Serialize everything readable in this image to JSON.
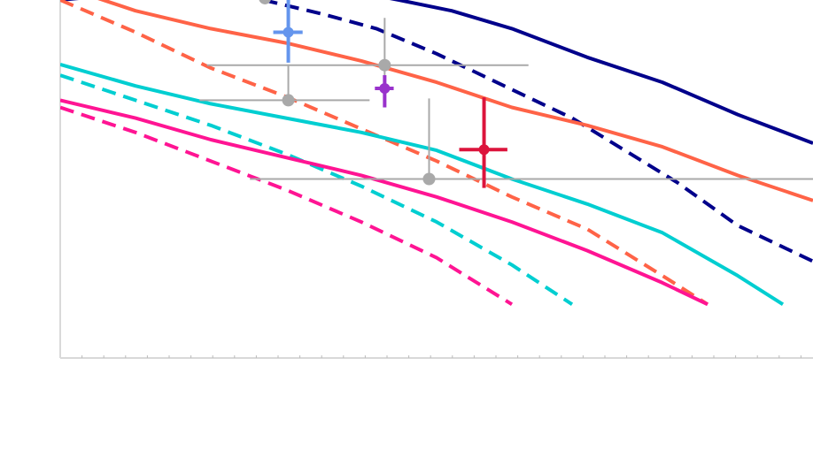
{
  "chart_data": {
    "type": "line",
    "title": "",
    "xlabel": "",
    "ylabel": "",
    "xlim": [
      0,
      100
    ],
    "ylim": [
      0,
      100
    ],
    "grid": false,
    "legend": "none",
    "series": [
      {
        "color": "#00008b",
        "dash": "solid",
        "x": [
          0,
          30,
          45,
          52,
          60,
          70,
          80,
          90,
          100
        ],
        "y": [
          100,
          106,
          100,
          97,
          92,
          84,
          77,
          68,
          60
        ]
      },
      {
        "color": "#00008b",
        "dash": "dash",
        "x": [
          27,
          35,
          42,
          50,
          55,
          60,
          68,
          75,
          82,
          90,
          100
        ],
        "y": [
          100,
          96,
          92,
          85,
          80,
          75,
          67,
          58,
          49,
          37,
          27
        ]
      },
      {
        "color": "#ff6347",
        "dash": "solid",
        "x": [
          0,
          10,
          20,
          30,
          40,
          50,
          60,
          70,
          80,
          90,
          100
        ],
        "y": [
          104,
          97,
          92,
          88,
          83,
          77,
          70,
          65,
          59,
          51,
          44
        ]
      },
      {
        "color": "#ff6347",
        "dash": "dash",
        "x": [
          0,
          10,
          20,
          30,
          40,
          50,
          60,
          70,
          80,
          86
        ],
        "y": [
          100,
          91,
          81,
          73,
          64,
          55,
          45,
          36,
          23,
          15
        ]
      },
      {
        "color": "#00ced1",
        "dash": "solid",
        "x": [
          0,
          10,
          20,
          30,
          40,
          50,
          60,
          70,
          80,
          90,
          96
        ],
        "y": [
          82,
          76,
          71,
          67,
          63,
          58,
          50,
          43,
          35,
          23,
          15
        ]
      },
      {
        "color": "#00ced1",
        "dash": "dash",
        "x": [
          0,
          10,
          20,
          30,
          40,
          50,
          60,
          68
        ],
        "y": [
          79,
          72,
          65,
          57,
          48,
          38,
          26,
          15
        ]
      },
      {
        "color": "#ff1493",
        "dash": "solid",
        "x": [
          0,
          10,
          20,
          30,
          40,
          50,
          60,
          70,
          80,
          86
        ],
        "y": [
          72,
          67,
          61,
          56,
          51,
          45,
          38,
          30,
          21,
          15
        ]
      },
      {
        "color": "#ff1493",
        "dash": "dash",
        "x": [
          0,
          10,
          20,
          30,
          40,
          50,
          60
        ],
        "y": [
          70,
          63,
          55,
          47,
          38,
          28,
          15
        ]
      }
    ],
    "points": [
      {
        "color": "#a9a9a9",
        "x": 27.2,
        "y": 100.5,
        "xerr_low": 17.3,
        "xerr_high": 43.4,
        "yerr_low": 100.5,
        "yerr_high": 111.0
      },
      {
        "color": "#a9a9a9",
        "x": 30.3,
        "y": 72.0,
        "xerr_low": 18.5,
        "xerr_high": 41.1,
        "yerr_low": 70.5,
        "yerr_high": 82.0
      },
      {
        "color": "#a9a9a9",
        "x": 49.0,
        "y": 50.0,
        "xerr_low": 25.2,
        "xerr_high": 100.0,
        "yerr_low": 50.0,
        "yerr_high": 72.5
      },
      {
        "color": "#a9a9a9",
        "x": 43.1,
        "y": 81.8,
        "xerr_low": 19.5,
        "xerr_high": 62.2,
        "yerr_low": 75.0,
        "yerr_high": 95.0
      },
      {
        "color": "#6495ed",
        "x": 30.3,
        "y": 91.0,
        "xerr_low": 28.3,
        "xerr_high": 32.2,
        "yerr_low": 82.5,
        "yerr_high": 101.5
      },
      {
        "color": "#9932cc",
        "x": 43.1,
        "y": 75.3,
        "xerr_low": 41.8,
        "xerr_high": 44.3,
        "yerr_low": 70.0,
        "yerr_high": 79.0
      },
      {
        "color": "#dc143c",
        "x": 56.3,
        "y": 58.2,
        "xerr_low": 53.0,
        "xerr_high": 59.4,
        "yerr_low": 47.5,
        "yerr_high": 72.8
      }
    ]
  }
}
